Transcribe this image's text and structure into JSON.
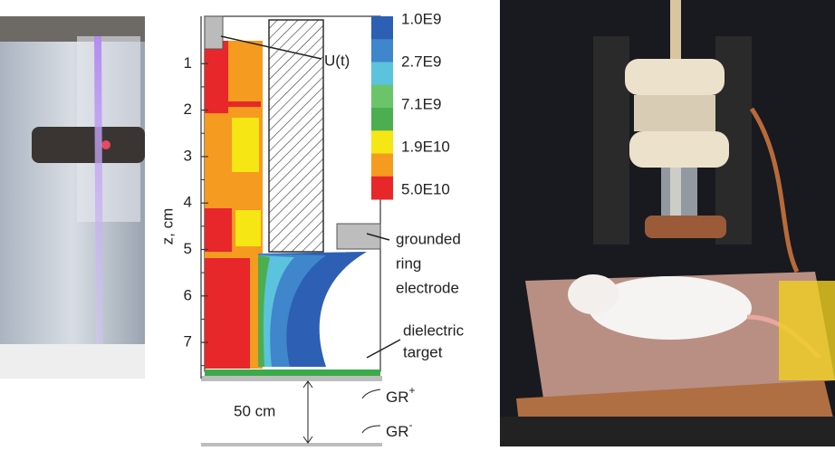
{
  "diagram": {
    "axis_label": "z, cm",
    "axis_ticks": [
      1,
      2,
      3,
      4,
      5,
      6,
      7
    ],
    "colorbar": [
      {
        "label": "1.0E9",
        "color": "#2d5fb4"
      },
      {
        "label": "2.7E9",
        "color": "#5bc3dd"
      },
      {
        "label": "7.1E9",
        "color": "#4cae4f"
      },
      {
        "label": "1.9E10",
        "color": "#f59b1f"
      },
      {
        "label": "5.0E10",
        "color": "#e8272b"
      }
    ],
    "annotations": {
      "voltage": "U(t)",
      "ring": [
        "grounded",
        "ring",
        "electrode"
      ],
      "target": [
        "dielectric",
        "target"
      ],
      "distance": "50 cm",
      "gr_plus": {
        "base": "GR",
        "sup": "+"
      },
      "gr_minus": {
        "base": "GR",
        "sup": "-"
      }
    }
  }
}
